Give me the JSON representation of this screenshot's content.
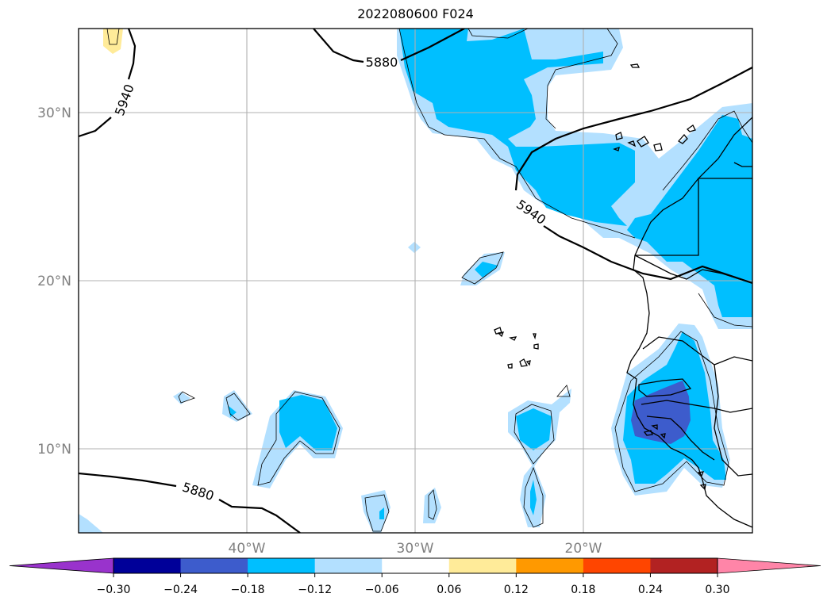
{
  "title": "2022080600 F024",
  "map": {
    "lat_labels": [
      "30°N",
      "20°N",
      "10°N"
    ],
    "lon_labels": [
      "40°W",
      "30°W",
      "20°W"
    ],
    "contour_labels": [
      "5880",
      "5940",
      "5940",
      "5880"
    ]
  },
  "colorbar": {
    "ticks": [
      "−0.30",
      "−0.24",
      "−0.18",
      "−0.12",
      "−0.06",
      "0.06",
      "0.12",
      "0.18",
      "0.24",
      "0.30"
    ],
    "colors": {
      "under": "#9933cc",
      "bins": [
        "#000099",
        "#3d5ccc",
        "#00bfff",
        "#b3e0ff",
        "#ffffff",
        "#ffeb99",
        "#ff9900",
        "#ff4500",
        "#b22222"
      ],
      "over": "#ff85a8"
    }
  },
  "field_colors": {
    "light": "#b3e0ff",
    "cyan": "#00bfff",
    "blue": "#3d5ccc",
    "yellow": "#ffeb99",
    "contour": "#000000"
  }
}
